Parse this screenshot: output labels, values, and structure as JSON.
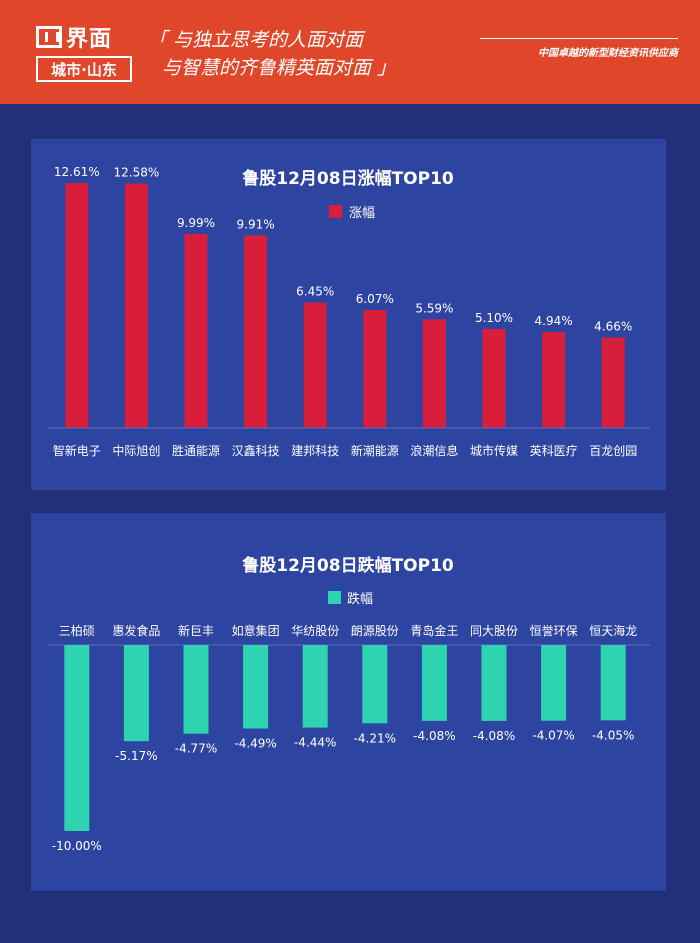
{
  "header": {
    "logo_name": "界面",
    "logo_city": "城市·山东",
    "slogan_line1": "「 与独立思考的人面对面",
    "slogan_line2": "与智慧的齐鲁精英面对面 」",
    "tagline": "中国卓越的新型财经资讯供应商"
  },
  "colors": {
    "header": "#e0462a",
    "background": "#22307a",
    "panel": "#2e44a1",
    "gain": "#d91e3c",
    "loss": "#2ed4b0"
  },
  "chart_data": [
    {
      "type": "bar",
      "title": "鲁股12月08日涨幅TOP10",
      "legend": "涨幅",
      "categories": [
        "智新电子",
        "中际旭创",
        "胜通能源",
        "汉鑫科技",
        "建邦科技",
        "新潮能源",
        "浪潮信息",
        "城市传媒",
        "英科医疗",
        "百龙创园"
      ],
      "values": [
        12.61,
        12.58,
        9.99,
        9.91,
        6.45,
        6.07,
        5.59,
        5.1,
        4.94,
        4.66
      ],
      "labels": [
        "12.61%",
        "12.58%",
        "9.99%",
        "9.91%",
        "6.45%",
        "6.07%",
        "5.59%",
        "5.10%",
        "4.94%",
        "4.66%"
      ],
      "color": "#d91e3c"
    },
    {
      "type": "bar",
      "title": "鲁股12月08日跌幅TOP10",
      "legend": "跌幅",
      "categories": [
        "三柏硕",
        "惠发食品",
        "新巨丰",
        "如意集团",
        "华纺股份",
        "朗源股份",
        "青岛金王",
        "同大股份",
        "恒誉环保",
        "恒天海龙"
      ],
      "values": [
        -10.0,
        -5.17,
        -4.77,
        -4.49,
        -4.44,
        -4.21,
        -4.08,
        -4.08,
        -4.07,
        -4.05
      ],
      "labels": [
        "-10.00%",
        "-5.17%",
        "-4.77%",
        "-4.49%",
        "-4.44%",
        "-4.21%",
        "-4.08%",
        "-4.08%",
        "-4.07%",
        "-4.05%"
      ],
      "color": "#2ed4b0"
    }
  ]
}
